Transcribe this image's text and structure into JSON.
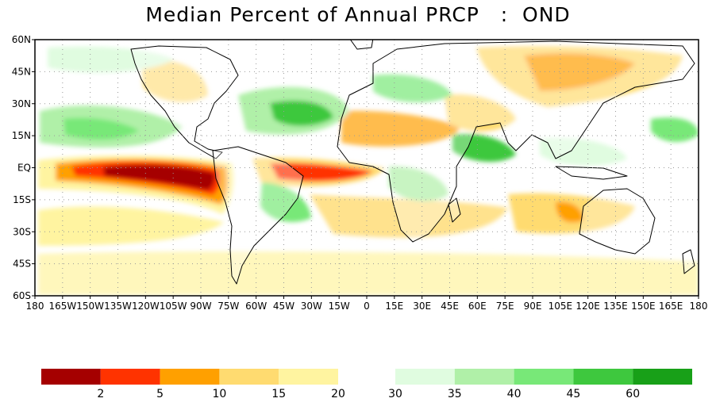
{
  "title": "Median Percent of Annual PRCP   :  OND",
  "map": {
    "lat_labels": [
      "60N",
      "45N",
      "30N",
      "15N",
      "EQ",
      "15S",
      "30S",
      "45S",
      "60S"
    ],
    "lon_labels": [
      "180",
      "165W",
      "150W",
      "135W",
      "120W",
      "105W",
      "90W",
      "75W",
      "60W",
      "45W",
      "30W",
      "15W",
      "0",
      "15E",
      "30E",
      "45E",
      "60E",
      "75E",
      "90E",
      "105E",
      "120E",
      "135E",
      "150E",
      "165E",
      "180"
    ],
    "lat_range": [
      -60,
      60
    ],
    "lon_range": [
      -180,
      180
    ],
    "grid": "dotted"
  },
  "colorbar": {
    "dry_colors": [
      "#a50000",
      "#ff3300",
      "#ffa000",
      "#ffdb70",
      "#fff4a0"
    ],
    "wet_colors": [
      "#e0fce0",
      "#b0f0a8",
      "#78e878",
      "#3ec83e",
      "#18a018"
    ],
    "labels": [
      "2",
      "5",
      "10",
      "15",
      "20",
      "30",
      "35",
      "40",
      "45",
      "60"
    ]
  }
}
